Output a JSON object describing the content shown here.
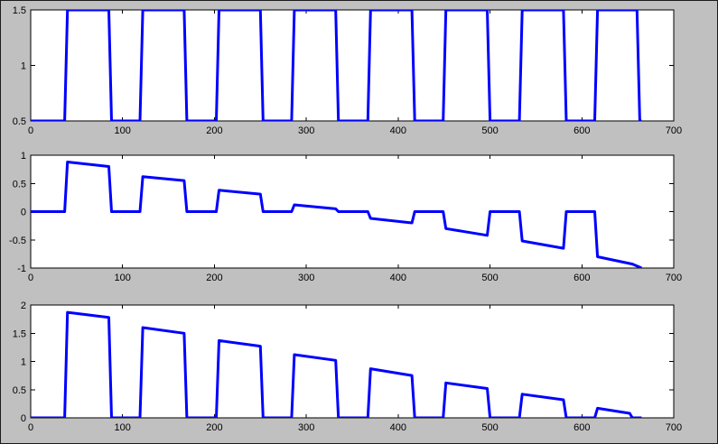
{
  "figure": {
    "background_color": "#c0c0c0",
    "axes_background_color": "#ffffff",
    "axis_color": "#000000",
    "line_color": "#0000ff",
    "line_width": 3
  },
  "chart_data": [
    {
      "type": "line",
      "name": "square-wave-input",
      "title": "",
      "xlabel": "",
      "ylabel": "",
      "xlim": [
        0,
        700
      ],
      "ylim": [
        0.5,
        1.5
      ],
      "xticks": [
        0,
        100,
        200,
        300,
        400,
        500,
        600,
        700
      ],
      "xtick_labels": [
        "0",
        "100",
        "200",
        "300",
        "400",
        "500",
        "600",
        "700"
      ],
      "yticks": [
        0.5,
        1,
        1.5
      ],
      "ytick_labels": [
        "0.5",
        "1",
        "1.5"
      ],
      "grid": false,
      "legend": null,
      "series": [
        {
          "name": "square-wave",
          "points": [
            [
              0,
              0.5
            ],
            [
              37,
              0.5
            ],
            [
              40,
              1.5
            ],
            [
              85,
              1.5
            ],
            [
              88,
              0.5
            ],
            [
              119,
              0.5
            ],
            [
              122,
              1.5
            ],
            [
              167,
              1.5
            ],
            [
              170,
              0.5
            ],
            [
              202,
              0.5
            ],
            [
              205,
              1.5
            ],
            [
              250,
              1.5
            ],
            [
              253,
              0.5
            ],
            [
              284,
              0.5
            ],
            [
              287,
              1.5
            ],
            [
              332,
              1.5
            ],
            [
              335,
              0.5
            ],
            [
              367,
              0.5
            ],
            [
              370,
              1.5
            ],
            [
              415,
              1.5
            ],
            [
              418,
              0.5
            ],
            [
              449,
              0.5
            ],
            [
              452,
              1.5
            ],
            [
              497,
              1.5
            ],
            [
              500,
              0.5
            ],
            [
              532,
              0.5
            ],
            [
              535,
              1.5
            ],
            [
              580,
              1.5
            ],
            [
              583,
              0.5
            ],
            [
              614,
              0.5
            ],
            [
              617,
              1.5
            ],
            [
              660,
              1.5
            ],
            [
              663,
              0.5
            ],
            [
              665,
              0.5
            ]
          ]
        }
      ]
    },
    {
      "type": "line",
      "name": "decaying-pulse-train-bipolar",
      "title": "",
      "xlabel": "",
      "ylabel": "",
      "xlim": [
        0,
        700
      ],
      "ylim": [
        -1,
        1
      ],
      "xticks": [
        0,
        100,
        200,
        300,
        400,
        500,
        600,
        700
      ],
      "xtick_labels": [
        "0",
        "100",
        "200",
        "300",
        "400",
        "500",
        "600",
        "700"
      ],
      "yticks": [
        -1,
        -0.5,
        0,
        0.5,
        1
      ],
      "ytick_labels": [
        "-1",
        "-0.5",
        "0",
        "0.5",
        "1"
      ],
      "grid": false,
      "legend": null,
      "series": [
        {
          "name": "pulse-train",
          "points": [
            [
              0,
              0
            ],
            [
              37,
              0
            ],
            [
              40,
              0.88
            ],
            [
              85,
              0.8
            ],
            [
              88,
              0
            ],
            [
              119,
              0
            ],
            [
              122,
              0.62
            ],
            [
              167,
              0.55
            ],
            [
              170,
              0
            ],
            [
              202,
              0
            ],
            [
              205,
              0.38
            ],
            [
              250,
              0.31
            ],
            [
              253,
              0
            ],
            [
              284,
              0
            ],
            [
              287,
              0.12
            ],
            [
              332,
              0.05
            ],
            [
              335,
              0
            ],
            [
              367,
              0
            ],
            [
              370,
              -0.12
            ],
            [
              415,
              -0.2
            ],
            [
              418,
              0
            ],
            [
              449,
              0
            ],
            [
              452,
              -0.3
            ],
            [
              497,
              -0.42
            ],
            [
              500,
              0
            ],
            [
              532,
              0
            ],
            [
              535,
              -0.52
            ],
            [
              580,
              -0.65
            ],
            [
              583,
              0
            ],
            [
              614,
              0
            ],
            [
              617,
              -0.8
            ],
            [
              655,
              -0.93
            ],
            [
              665,
              -1.0
            ]
          ]
        }
      ]
    },
    {
      "type": "line",
      "name": "decaying-pulse-train-positive",
      "title": "",
      "xlabel": "",
      "ylabel": "",
      "xlim": [
        0,
        700
      ],
      "ylim": [
        0,
        2
      ],
      "xticks": [
        0,
        100,
        200,
        300,
        400,
        500,
        600,
        700
      ],
      "xtick_labels": [
        "0",
        "100",
        "200",
        "300",
        "400",
        "500",
        "600",
        "700"
      ],
      "yticks": [
        0,
        0.5,
        1,
        1.5,
        2
      ],
      "ytick_labels": [
        "0",
        "0.5",
        "1",
        "1.5",
        "2"
      ],
      "grid": false,
      "legend": null,
      "series": [
        {
          "name": "pulse-train",
          "points": [
            [
              0,
              0
            ],
            [
              37,
              0
            ],
            [
              40,
              1.87
            ],
            [
              85,
              1.78
            ],
            [
              88,
              0
            ],
            [
              119,
              0
            ],
            [
              122,
              1.6
            ],
            [
              167,
              1.5
            ],
            [
              170,
              0
            ],
            [
              202,
              0
            ],
            [
              205,
              1.37
            ],
            [
              250,
              1.27
            ],
            [
              253,
              0
            ],
            [
              284,
              0
            ],
            [
              287,
              1.12
            ],
            [
              332,
              1.02
            ],
            [
              335,
              0
            ],
            [
              367,
              0
            ],
            [
              370,
              0.87
            ],
            [
              415,
              0.75
            ],
            [
              418,
              0
            ],
            [
              449,
              0
            ],
            [
              452,
              0.62
            ],
            [
              497,
              0.52
            ],
            [
              500,
              0
            ],
            [
              532,
              0
            ],
            [
              535,
              0.42
            ],
            [
              580,
              0.32
            ],
            [
              583,
              0
            ],
            [
              614,
              0
            ],
            [
              617,
              0.17
            ],
            [
              652,
              0.08
            ],
            [
              655,
              0
            ],
            [
              665,
              0
            ]
          ]
        }
      ]
    }
  ]
}
